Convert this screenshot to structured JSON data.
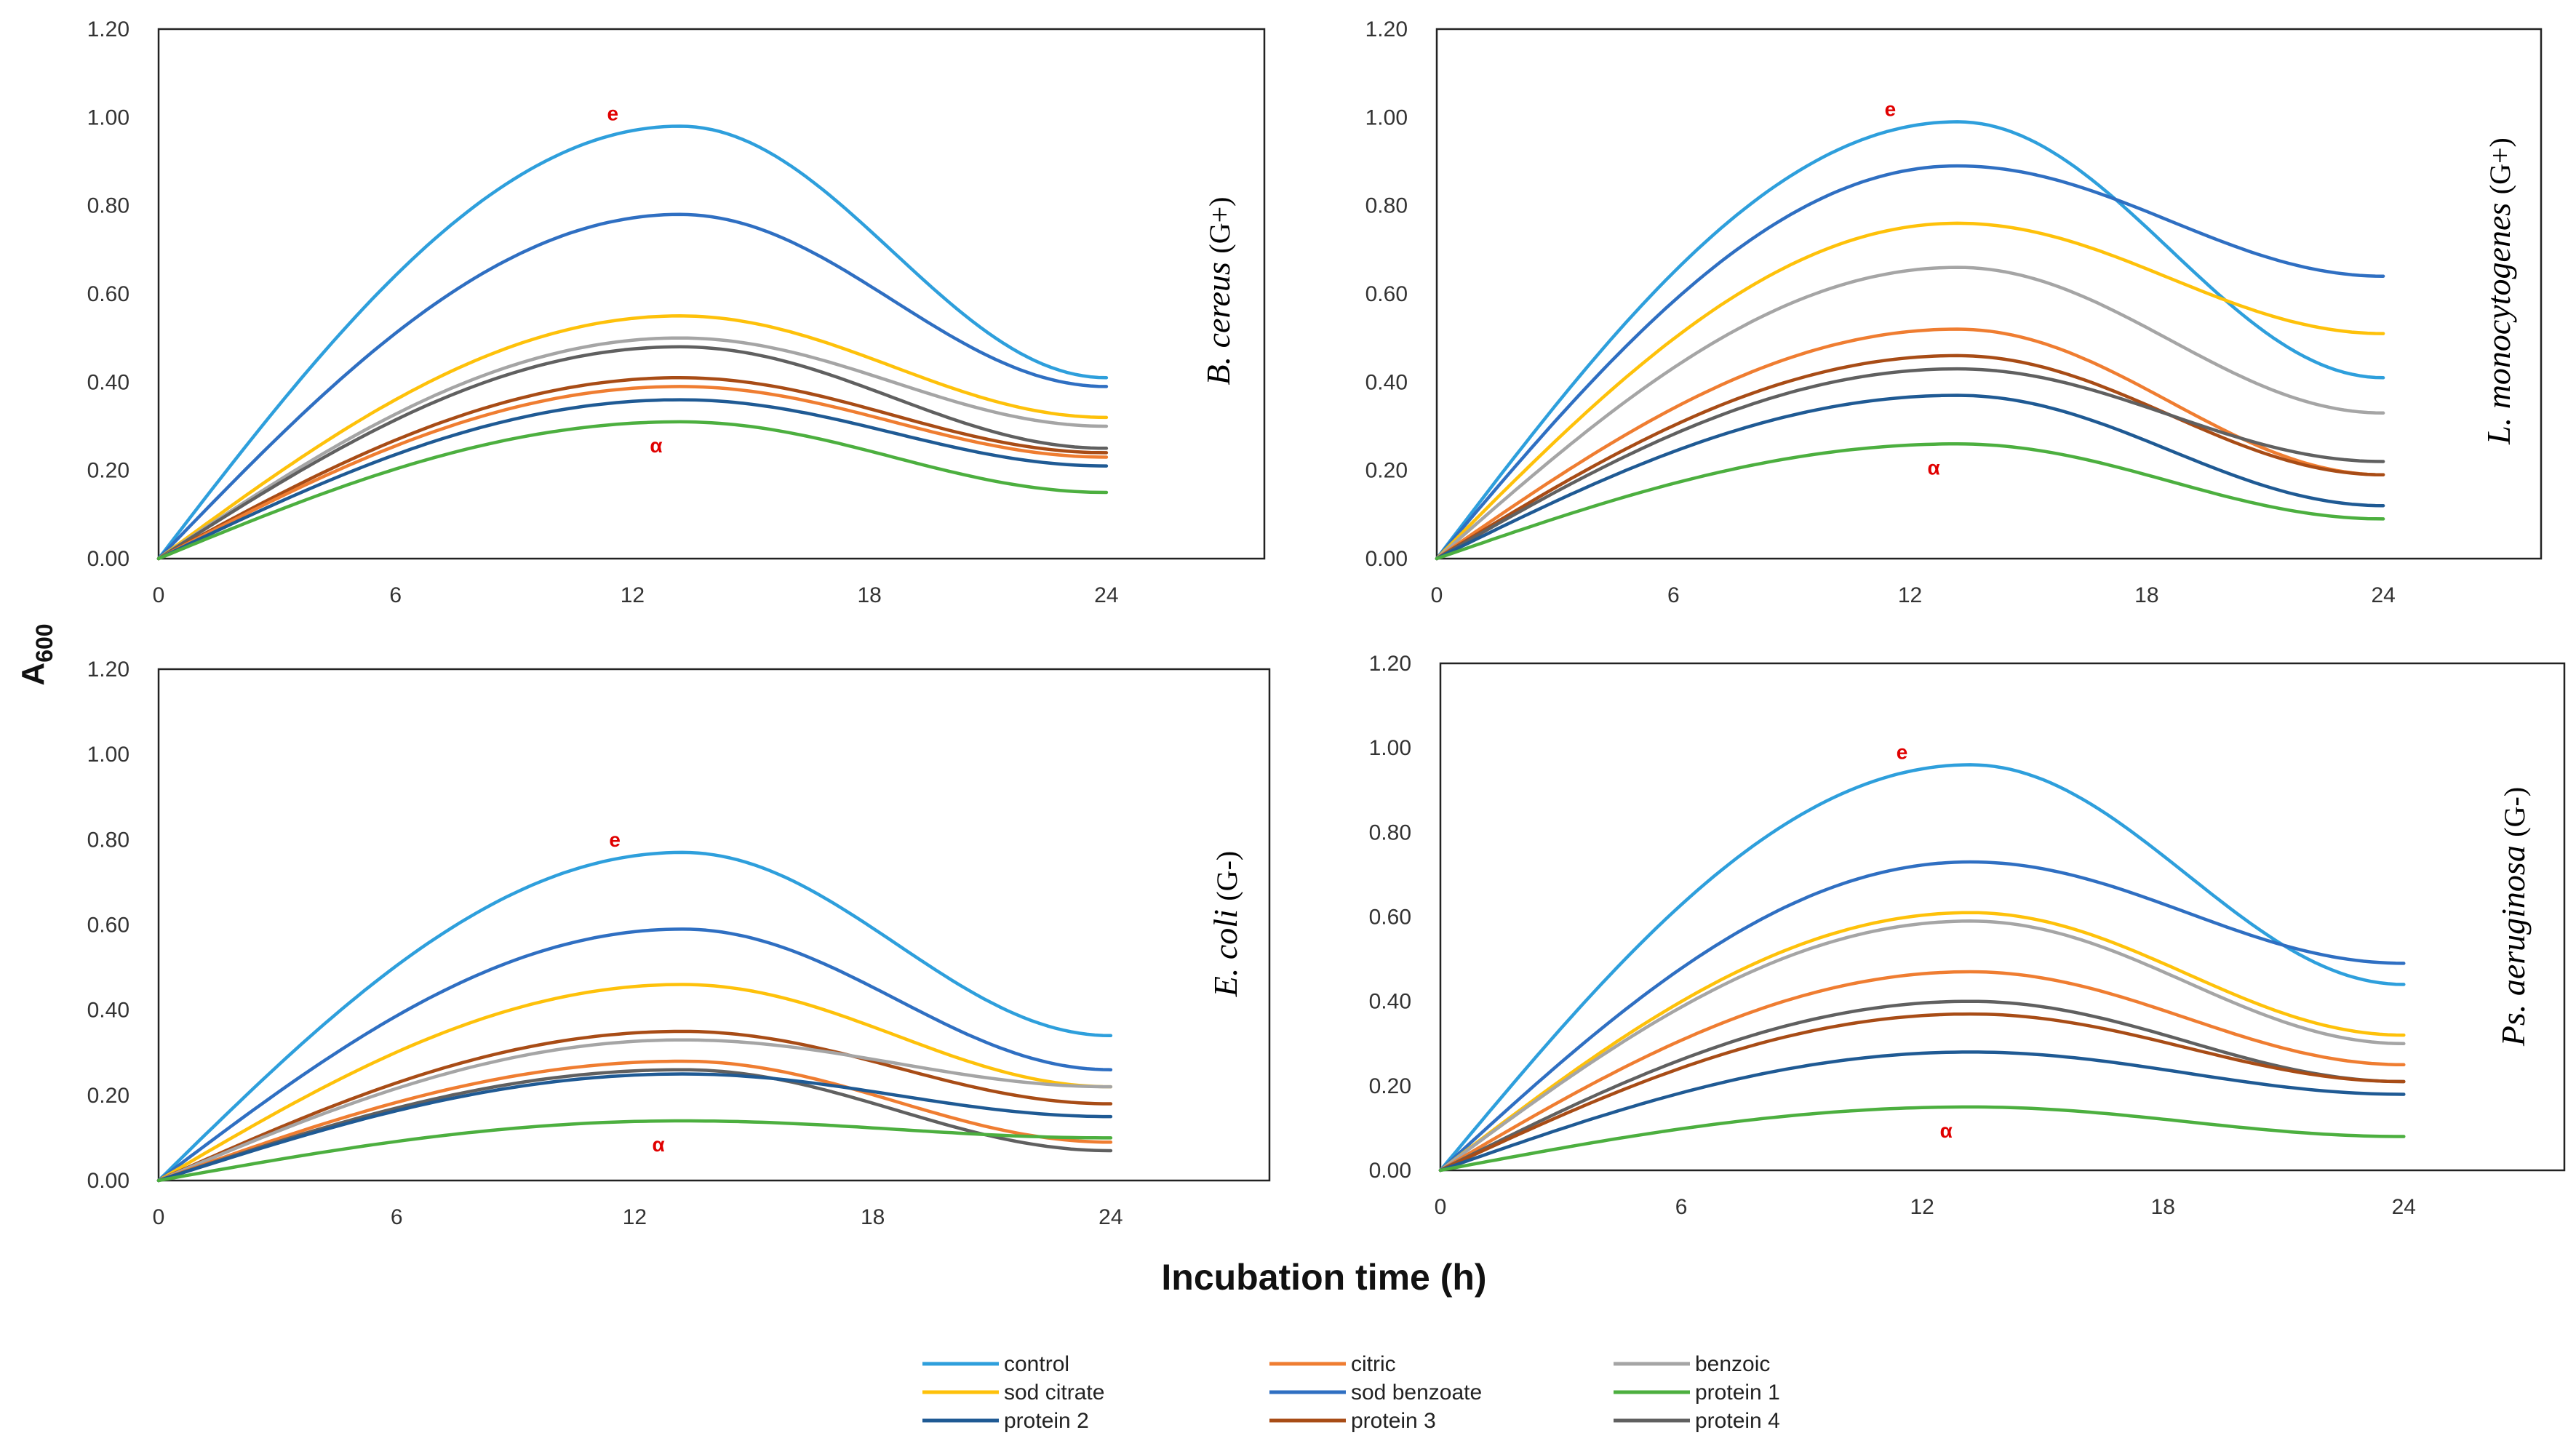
{
  "y_axis_label": "A",
  "y_axis_subscript": "600",
  "x_axis_label": "Incubation time (h)",
  "chart_data": [
    {
      "type": "line",
      "organism": "B. cereus",
      "gram": "(G+)",
      "marker_high": "e",
      "marker_low": "α",
      "x": [
        0,
        12,
        24
      ],
      "xticks": [
        "0",
        "6",
        "12",
        "18",
        "24"
      ],
      "yticks": [
        "0.00",
        "0.20",
        "0.40",
        "0.60",
        "0.80",
        "1.00",
        "1.20"
      ],
      "xlim": [
        0,
        28
      ],
      "ylim": [
        0,
        1.2
      ],
      "series": [
        {
          "name": "control",
          "values": [
            0,
            0.98,
            0.41
          ]
        },
        {
          "name": "sod benzoate",
          "values": [
            0,
            0.78,
            0.39
          ]
        },
        {
          "name": "sod citrate",
          "values": [
            0,
            0.55,
            0.32
          ]
        },
        {
          "name": "benzoic",
          "values": [
            0,
            0.5,
            0.3
          ]
        },
        {
          "name": "protein 4",
          "values": [
            0,
            0.48,
            0.25
          ]
        },
        {
          "name": "protein 3",
          "values": [
            0,
            0.41,
            0.24
          ]
        },
        {
          "name": "citric",
          "values": [
            0,
            0.39,
            0.23
          ]
        },
        {
          "name": "protein 2",
          "values": [
            0,
            0.36,
            0.21
          ]
        },
        {
          "name": "protein 1",
          "values": [
            0,
            0.31,
            0.15
          ]
        }
      ]
    },
    {
      "type": "line",
      "organism": "L. monocytogenes",
      "gram": "(G+)",
      "marker_high": "e",
      "marker_low": "α",
      "x": [
        0,
        12,
        24
      ],
      "xticks": [
        "0",
        "6",
        "12",
        "18",
        "24"
      ],
      "yticks": [
        "0.00",
        "0.20",
        "0.40",
        "0.60",
        "0.80",
        "1.00",
        "1.20"
      ],
      "xlim": [
        0,
        28
      ],
      "ylim": [
        0,
        1.2
      ],
      "series": [
        {
          "name": "control",
          "values": [
            0,
            0.99,
            0.41
          ]
        },
        {
          "name": "sod benzoate",
          "values": [
            0,
            0.89,
            0.64
          ]
        },
        {
          "name": "sod citrate",
          "values": [
            0,
            0.76,
            0.51
          ]
        },
        {
          "name": "benzoic",
          "values": [
            0,
            0.66,
            0.33
          ]
        },
        {
          "name": "citric",
          "values": [
            0,
            0.52,
            0.19
          ]
        },
        {
          "name": "protein 3",
          "values": [
            0,
            0.46,
            0.19
          ]
        },
        {
          "name": "protein 4",
          "values": [
            0,
            0.43,
            0.22
          ]
        },
        {
          "name": "protein 2",
          "values": [
            0,
            0.37,
            0.12
          ]
        },
        {
          "name": "protein 1",
          "values": [
            0,
            0.26,
            0.09
          ]
        }
      ]
    },
    {
      "type": "line",
      "organism": "E. coli",
      "gram": "(G-)",
      "marker_high": "e",
      "marker_low": "α",
      "x": [
        0,
        12,
        24
      ],
      "xticks": [
        "0",
        "6",
        "12",
        "18",
        "24"
      ],
      "yticks": [
        "0.00",
        "0.20",
        "0.40",
        "0.60",
        "0.80",
        "1.00",
        "1.20"
      ],
      "xlim": [
        0,
        28
      ],
      "ylim": [
        0,
        1.2
      ],
      "series": [
        {
          "name": "control",
          "values": [
            0,
            0.77,
            0.34
          ]
        },
        {
          "name": "sod benzoate",
          "values": [
            0,
            0.59,
            0.26
          ]
        },
        {
          "name": "sod citrate",
          "values": [
            0,
            0.46,
            0.22
          ]
        },
        {
          "name": "protein 3",
          "values": [
            0,
            0.35,
            0.18
          ]
        },
        {
          "name": "benzoic",
          "values": [
            0,
            0.33,
            0.22
          ]
        },
        {
          "name": "citric",
          "values": [
            0,
            0.28,
            0.09
          ]
        },
        {
          "name": "protein 4",
          "values": [
            0,
            0.26,
            0.07
          ]
        },
        {
          "name": "protein 2",
          "values": [
            0,
            0.25,
            0.15
          ]
        },
        {
          "name": "protein 1",
          "values": [
            0,
            0.14,
            0.1
          ]
        }
      ]
    },
    {
      "type": "line",
      "organism": "Ps. aeruginosa",
      "gram": "(G-)",
      "marker_high": "e",
      "marker_low": "α",
      "x": [
        0,
        12,
        24
      ],
      "xticks": [
        "0",
        "6",
        "12",
        "18",
        "24"
      ],
      "yticks": [
        "0.00",
        "0.20",
        "0.40",
        "0.60",
        "0.80",
        "1.00",
        "1.20"
      ],
      "xlim": [
        0,
        28
      ],
      "ylim": [
        0,
        1.2
      ],
      "series": [
        {
          "name": "control",
          "values": [
            0,
            0.96,
            0.44
          ]
        },
        {
          "name": "sod benzoate",
          "values": [
            0,
            0.73,
            0.49
          ]
        },
        {
          "name": "sod citrate",
          "values": [
            0,
            0.61,
            0.32
          ]
        },
        {
          "name": "benzoic",
          "values": [
            0,
            0.59,
            0.3
          ]
        },
        {
          "name": "citric",
          "values": [
            0,
            0.47,
            0.25
          ]
        },
        {
          "name": "protein 4",
          "values": [
            0,
            0.4,
            0.21
          ]
        },
        {
          "name": "protein 3",
          "values": [
            0,
            0.37,
            0.21
          ]
        },
        {
          "name": "protein 2",
          "values": [
            0,
            0.28,
            0.18
          ]
        },
        {
          "name": "protein 1",
          "values": [
            0,
            0.15,
            0.08
          ]
        }
      ]
    }
  ],
  "legend": [
    {
      "name": "control",
      "color": "#2e9fdc"
    },
    {
      "name": "citric",
      "color": "#ef7d31"
    },
    {
      "name": "benzoic",
      "color": "#a5a5a5"
    },
    {
      "name": "sod citrate",
      "color": "#fec10a"
    },
    {
      "name": "sod benzoate",
      "color": "#2f6fc2"
    },
    {
      "name": "protein 1",
      "color": "#4caf3f"
    },
    {
      "name": "protein 2",
      "color": "#1f5a94"
    },
    {
      "name": "protein 3",
      "color": "#a84c16"
    },
    {
      "name": "protein 4",
      "color": "#606060"
    }
  ]
}
